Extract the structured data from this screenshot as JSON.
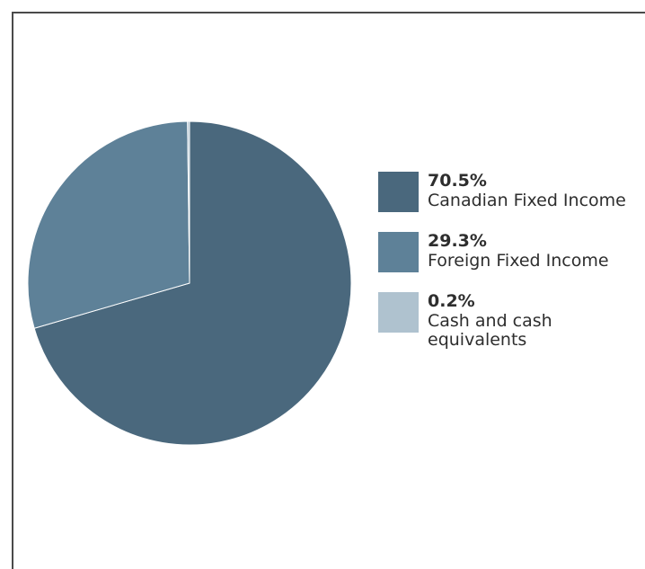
{
  "chart_data": {
    "type": "pie",
    "title": "",
    "slices": [
      {
        "label": "Canadian Fixed Income",
        "value": 70.5,
        "display": "70.5%",
        "color": "#4a687d"
      },
      {
        "label": "Foreign Fixed Income",
        "value": 29.3,
        "display": "29.3%",
        "color": "#5e8198"
      },
      {
        "label": "Cash and cash equivalents",
        "value": 0.2,
        "display": "0.2%",
        "color": "#afc2cf"
      }
    ],
    "legend_position": "right"
  }
}
